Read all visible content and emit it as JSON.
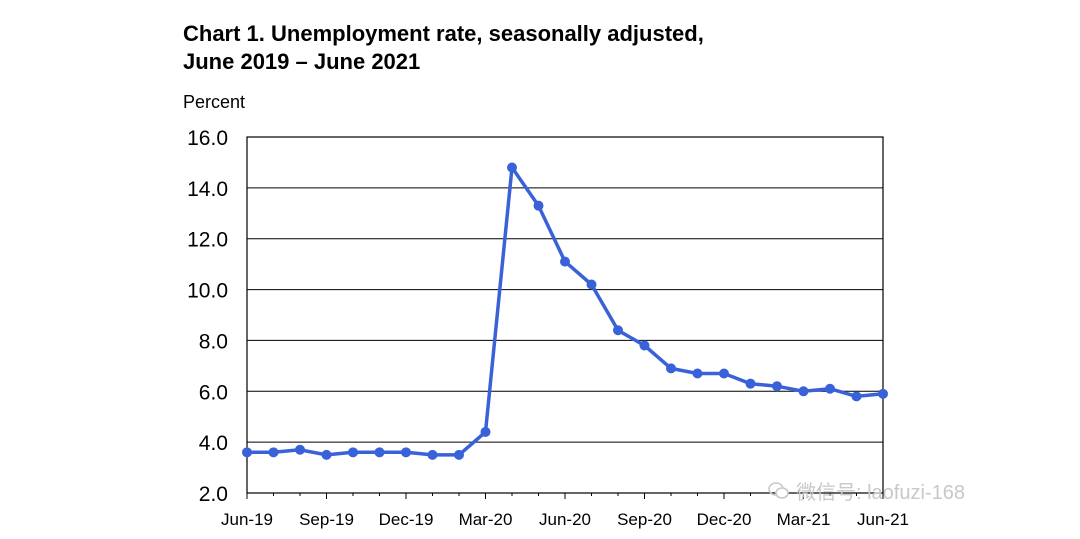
{
  "title_line1": "Chart 1. Unemployment rate, seasonally adjusted,",
  "title_line2": "June 2019 – June 2021",
  "watermark": "微信号: laofuzi-168",
  "chart_data": {
    "type": "line",
    "title": "Chart 1. Unemployment rate, seasonally adjusted, June 2019 – June 2021",
    "ylabel": "Percent",
    "xlabel": "",
    "ylim": [
      2.0,
      16.0
    ],
    "yticks": [
      "2.0",
      "4.0",
      "6.0",
      "8.0",
      "10.0",
      "12.0",
      "14.0",
      "16.0"
    ],
    "x_tick_labels": [
      "Jun-19",
      "Sep-19",
      "Dec-19",
      "Mar-20",
      "Jun-20",
      "Sep-20",
      "Dec-20",
      "Mar-21",
      "Jun-21"
    ],
    "grid": true,
    "line_color": "#3a62d8",
    "x": [
      "Jun-19",
      "Jul-19",
      "Aug-19",
      "Sep-19",
      "Oct-19",
      "Nov-19",
      "Dec-19",
      "Jan-20",
      "Feb-20",
      "Mar-20",
      "Apr-20",
      "May-20",
      "Jun-20",
      "Jul-20",
      "Aug-20",
      "Sep-20",
      "Oct-20",
      "Nov-20",
      "Dec-20",
      "Jan-21",
      "Feb-21",
      "Mar-21",
      "Apr-21",
      "May-21",
      "Jun-21"
    ],
    "values": [
      3.6,
      3.6,
      3.7,
      3.5,
      3.6,
      3.6,
      3.6,
      3.5,
      3.5,
      4.4,
      14.8,
      13.3,
      11.1,
      10.2,
      8.4,
      7.8,
      6.9,
      6.7,
      6.7,
      6.3,
      6.2,
      6.0,
      6.1,
      5.8,
      5.9
    ]
  }
}
